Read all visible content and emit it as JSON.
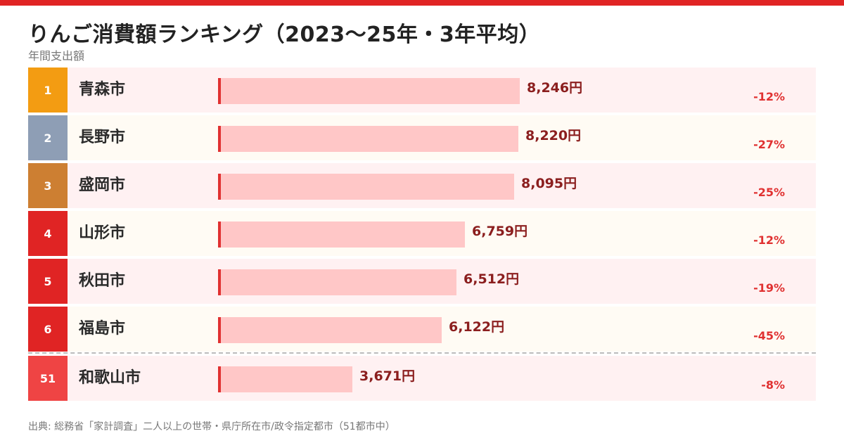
{
  "header": {
    "title": "りんご消費額ランキング（2023〜25年・3年平均）",
    "subtitle": "年間支出額"
  },
  "footer": {
    "source": "出典: 総務省「家計調査」二人以上の世帯・県庁所在市/政令指定都市（51都市中）"
  },
  "colors": {
    "topbar": "#e02424",
    "rank1": "#f39c12",
    "rank2": "#8e9eb5",
    "rank3": "#cd7f32",
    "rank_other": "#e02424",
    "rank_highlight": "#ef4444",
    "row_pink": "#fff1f2",
    "row_cream": "#fffbf4",
    "bar_fill": "#ffc7c7",
    "bar_edge": "#e03131"
  },
  "chart_data": {
    "type": "bar",
    "orientation": "horizontal",
    "unit": "円",
    "xlim": [
      0,
      10000
    ],
    "grid": false,
    "rows": [
      {
        "rank": "1",
        "city": "青森市",
        "value": 8246,
        "value_label": "8,246円",
        "change": "-12%"
      },
      {
        "rank": "2",
        "city": "長野市",
        "value": 8220,
        "value_label": "8,220円",
        "change": "-27%"
      },
      {
        "rank": "3",
        "city": "盛岡市",
        "value": 8095,
        "value_label": "8,095円",
        "change": "-25%"
      },
      {
        "rank": "4",
        "city": "山形市",
        "value": 6759,
        "value_label": "6,759円",
        "change": "-12%"
      },
      {
        "rank": "5",
        "city": "秋田市",
        "value": 6512,
        "value_label": "6,512円",
        "change": "-19%"
      },
      {
        "rank": "6",
        "city": "福島市",
        "value": 6122,
        "value_label": "6,122円",
        "change": "-45%"
      },
      {
        "rank": "51",
        "city": "和歌山市",
        "value": 3671,
        "value_label": "3,671円",
        "change": "-8%"
      }
    ]
  }
}
